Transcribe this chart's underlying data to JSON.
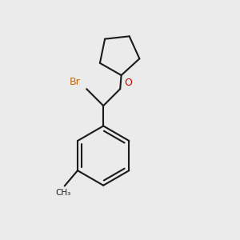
{
  "background_color": "#ebebeb",
  "bond_color": "#1a1a1a",
  "br_color": "#cc6600",
  "o_color": "#cc0000",
  "bond_width": 1.5,
  "figsize": [
    3.0,
    3.0
  ],
  "dpi": 100,
  "xlim": [
    0.0,
    1.0
  ],
  "ylim": [
    0.0,
    1.0
  ]
}
